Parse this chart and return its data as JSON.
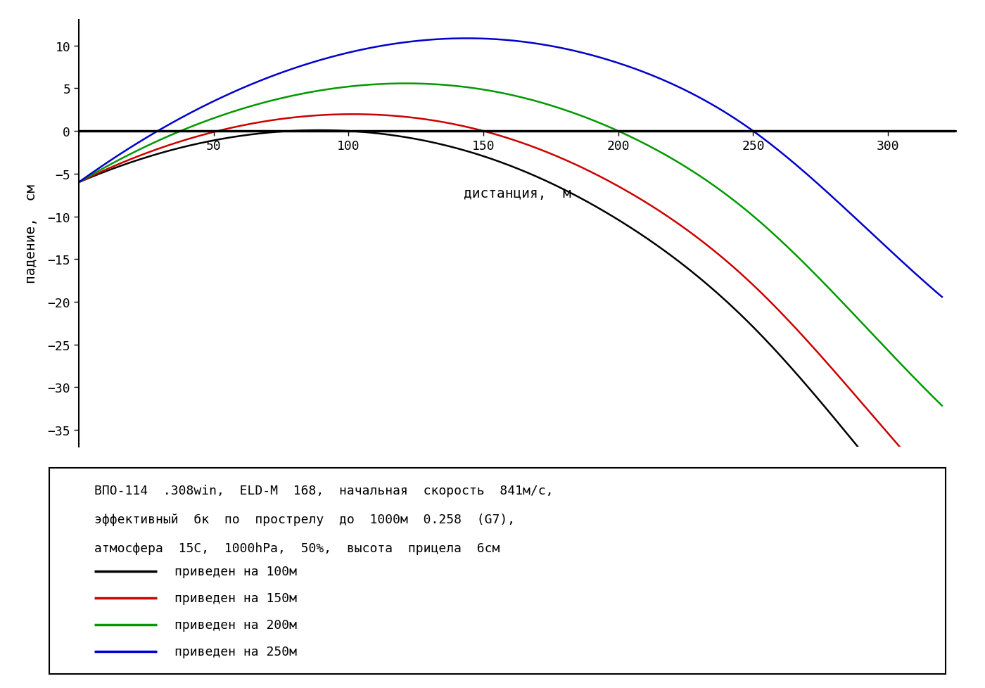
{
  "xlabel": "дистанция,  м",
  "ylabel": "падение,  см",
  "xlim": [
    0,
    325
  ],
  "ylim": [
    -37,
    13
  ],
  "xticks": [
    0,
    50,
    100,
    150,
    200,
    250,
    300
  ],
  "yticks": [
    -35,
    -30,
    -25,
    -20,
    -15,
    -10,
    -5,
    0,
    5,
    10
  ],
  "bg_color": "#ffffff",
  "line_colors": [
    "#000000",
    "#cc0000",
    "#009900",
    "#0000cc"
  ],
  "line_labels": [
    "приведен на 100м",
    "приведен на 150м",
    "приведен на 200м",
    "приведен на 250м"
  ],
  "info_text_line1": "ВПО-114  .308win,  ELD-M  168,  начальная  скорость  841м/с,",
  "info_text_line2": "эффективный  бк  по  прострелу  до  1000м  0.258  (G7),",
  "info_text_line3": "атмосфера  15C,  1000hPa,  50%,  высота  прицела  6см",
  "zero_distances": [
    100,
    150,
    200,
    250
  ],
  "sight_height_cm": 6,
  "muzzle_velocity": 841,
  "bc_g7": 0.258,
  "x_max": 320
}
